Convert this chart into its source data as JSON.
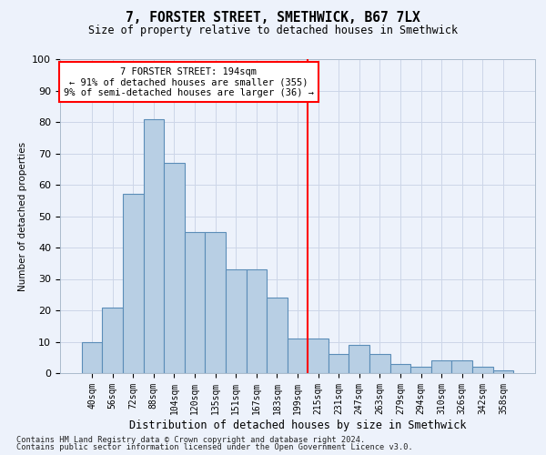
{
  "title": "7, FORSTER STREET, SMETHWICK, B67 7LX",
  "subtitle": "Size of property relative to detached houses in Smethwick",
  "xlabel": "Distribution of detached houses by size in Smethwick",
  "ylabel": "Number of detached properties",
  "footnote1": "Contains HM Land Registry data © Crown copyright and database right 2024.",
  "footnote2": "Contains public sector information licensed under the Open Government Licence v3.0.",
  "bar_labels": [
    "40sqm",
    "56sqm",
    "72sqm",
    "88sqm",
    "104sqm",
    "120sqm",
    "135sqm",
    "151sqm",
    "167sqm",
    "183sqm",
    "199sqm",
    "215sqm",
    "231sqm",
    "247sqm",
    "263sqm",
    "279sqm",
    "294sqm",
    "310sqm",
    "326sqm",
    "342sqm",
    "358sqm"
  ],
  "bar_values": [
    10,
    21,
    57,
    81,
    67,
    45,
    45,
    33,
    33,
    24,
    11,
    11,
    6,
    9,
    6,
    3,
    2,
    4,
    4,
    2,
    1
  ],
  "bar_color": "#b8cfe4",
  "bar_edge_color": "#5b8db8",
  "vline_index": 10,
  "vline_color": "red",
  "annotation_line1": "7 FORSTER STREET: 194sqm",
  "annotation_line2": "← 91% of detached houses are smaller (355)",
  "annotation_line3": "9% of semi-detached houses are larger (36) →",
  "ylim": [
    0,
    100
  ],
  "yticks": [
    0,
    10,
    20,
    30,
    40,
    50,
    60,
    70,
    80,
    90,
    100
  ],
  "grid_color": "#ccd6e8",
  "background_color": "#edf2fb"
}
